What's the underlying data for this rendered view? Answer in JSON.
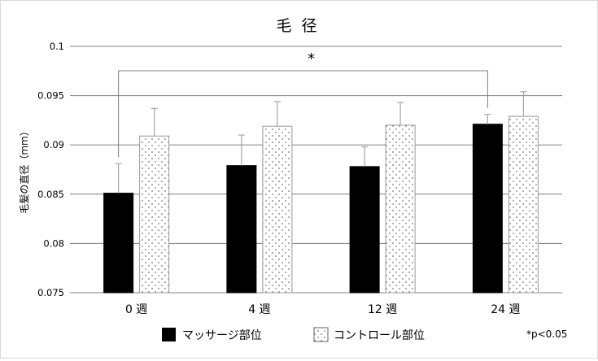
{
  "chart_data": {
    "type": "bar",
    "title": "毛 径",
    "ylabel": "毛髪の直径（mm）",
    "xlabel": "",
    "categories": [
      "0 週",
      "4 週",
      "12 週",
      "24 週"
    ],
    "ylim": [
      0.075,
      0.1
    ],
    "yticks": [
      0.075,
      0.08,
      0.085,
      0.09,
      0.095,
      0.1
    ],
    "ytick_labels": [
      "0.075",
      "0.08",
      "0.085",
      "0.09",
      "0.095",
      "0.1"
    ],
    "grid": true,
    "series": [
      {
        "name": "マッサージ部位",
        "values": [
          0.0851,
          0.0879,
          0.0878,
          0.0921
        ],
        "errors": [
          0.003,
          0.0031,
          0.002,
          0.001
        ],
        "fill": "#000000"
      },
      {
        "name": "コントロール部位",
        "values": [
          0.0909,
          0.0919,
          0.092,
          0.0929
        ],
        "errors": [
          0.0028,
          0.0025,
          0.0023,
          0.0025
        ],
        "fill": "dotted"
      }
    ],
    "significance": {
      "label": "*",
      "from": "0 週",
      "to": "24 週"
    },
    "footnote": "*p<0.05",
    "legend_position": "bottom"
  },
  "colors": {
    "bar_dark": "#000000",
    "bar_light": "#ffffff",
    "grid": "#808080",
    "error": "#a6a6a6"
  }
}
